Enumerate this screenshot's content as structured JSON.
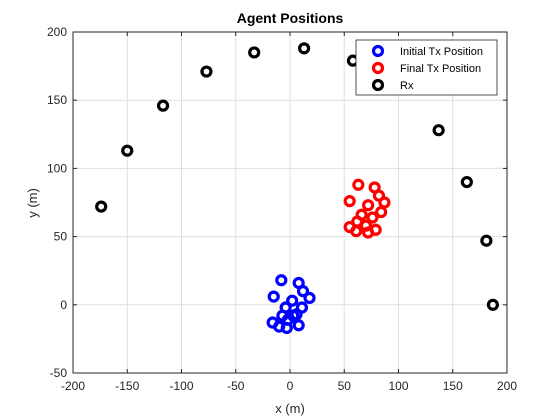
{
  "chart_data": {
    "type": "scatter",
    "title": "Agent Positions",
    "xlabel": "x (m)",
    "ylabel": "y (m)",
    "xlim": [
      -200,
      200
    ],
    "ylim": [
      -50,
      200
    ],
    "xticks": [
      -200,
      -150,
      -100,
      -50,
      0,
      50,
      100,
      150,
      200
    ],
    "yticks": [
      -50,
      0,
      50,
      100,
      150,
      200
    ],
    "grid": true,
    "legend_position": "top-right",
    "series": [
      {
        "name": "Initial Tx Position",
        "color": "#0000ff",
        "points": [
          [
            -8,
            18
          ],
          [
            8,
            16
          ],
          [
            -15,
            6
          ],
          [
            12,
            10
          ],
          [
            18,
            5
          ],
          [
            2,
            3
          ],
          [
            -4,
            -2
          ],
          [
            11,
            -2
          ],
          [
            -7,
            -8
          ],
          [
            6,
            -7
          ],
          [
            -2,
            -11
          ],
          [
            -16,
            -13
          ],
          [
            -10,
            -16
          ],
          [
            -3,
            -17
          ],
          [
            8,
            -15
          ],
          [
            3,
            -8
          ]
        ]
      },
      {
        "name": "Final Tx Position",
        "color": "#ff0000",
        "points": [
          [
            63,
            88
          ],
          [
            78,
            86
          ],
          [
            82,
            80
          ],
          [
            55,
            76
          ],
          [
            87,
            75
          ],
          [
            72,
            73
          ],
          [
            84,
            68
          ],
          [
            66,
            66
          ],
          [
            76,
            64
          ],
          [
            62,
            61
          ],
          [
            70,
            58
          ],
          [
            55,
            57
          ],
          [
            61,
            54
          ],
          [
            72,
            53
          ],
          [
            79,
            55
          ]
        ]
      },
      {
        "name": "Rx",
        "color": "#000000",
        "points": [
          [
            -174,
            72
          ],
          [
            -150,
            113
          ],
          [
            -117,
            146
          ],
          [
            -77,
            171
          ],
          [
            -33,
            185
          ],
          [
            13,
            188
          ],
          [
            58,
            179
          ],
          [
            137,
            128
          ],
          [
            163,
            90
          ],
          [
            181,
            47
          ],
          [
            187,
            0
          ]
        ]
      }
    ]
  }
}
